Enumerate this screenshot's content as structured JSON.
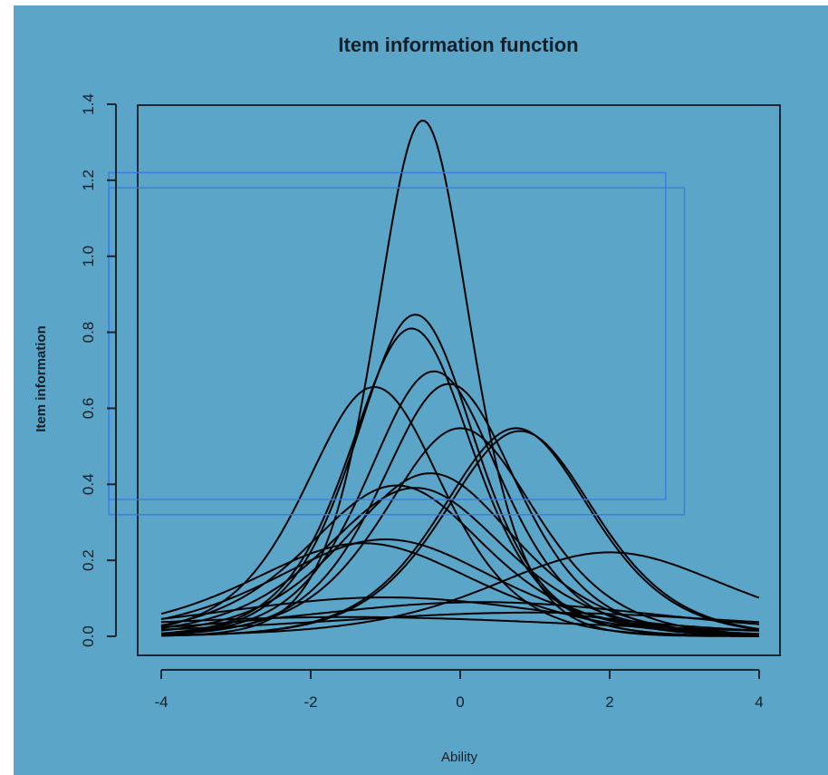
{
  "chart_data": {
    "type": "line",
    "title": "Item information function",
    "xlabel": "Ability",
    "ylabel": "Item information",
    "xlim": [
      -4,
      4
    ],
    "ylim": [
      0,
      1.4
    ],
    "x_ticks": [
      "-4",
      "-2",
      "0",
      "2",
      "4"
    ],
    "y_ticks": [
      "0.0",
      "0.2",
      "0.4",
      "0.6",
      "0.8",
      "1.0",
      "1.2",
      "1.4"
    ],
    "grid": false,
    "legend": "none",
    "line_color": "#000000",
    "background_color": "#5aa5c8",
    "highlight_color": "#3b7be0",
    "series": [
      {
        "a": 2.33,
        "b": -0.5
      },
      {
        "a": 1.84,
        "b": -0.6
      },
      {
        "a": 1.8,
        "b": -0.65
      },
      {
        "a": 1.67,
        "b": -0.35
      },
      {
        "a": 1.63,
        "b": -0.15
      },
      {
        "a": 1.62,
        "b": -1.15
      },
      {
        "a": 1.48,
        "b": 0.0
      },
      {
        "a": 1.47,
        "b": 0.8
      },
      {
        "a": 1.48,
        "b": 0.75
      },
      {
        "a": 1.31,
        "b": -0.4
      },
      {
        "a": 1.26,
        "b": -0.85
      },
      {
        "a": 1.25,
        "b": -0.6
      },
      {
        "a": 1.01,
        "b": -1.0
      },
      {
        "a": 0.99,
        "b": -1.3
      },
      {
        "a": 0.94,
        "b": 2.0
      },
      {
        "a": 0.64,
        "b": -1.0
      },
      {
        "a": 0.6,
        "b": 0.3
      },
      {
        "a": 0.5,
        "b": 1.0
      },
      {
        "a": 0.45,
        "b": -1.5
      }
    ],
    "highlight_boxes": [
      {
        "x": [
          -4.7,
          2.75
        ],
        "y": [
          0.36,
          1.22
        ]
      },
      {
        "x": [
          -4.7,
          3.0
        ],
        "y": [
          0.32,
          1.18
        ]
      }
    ]
  }
}
